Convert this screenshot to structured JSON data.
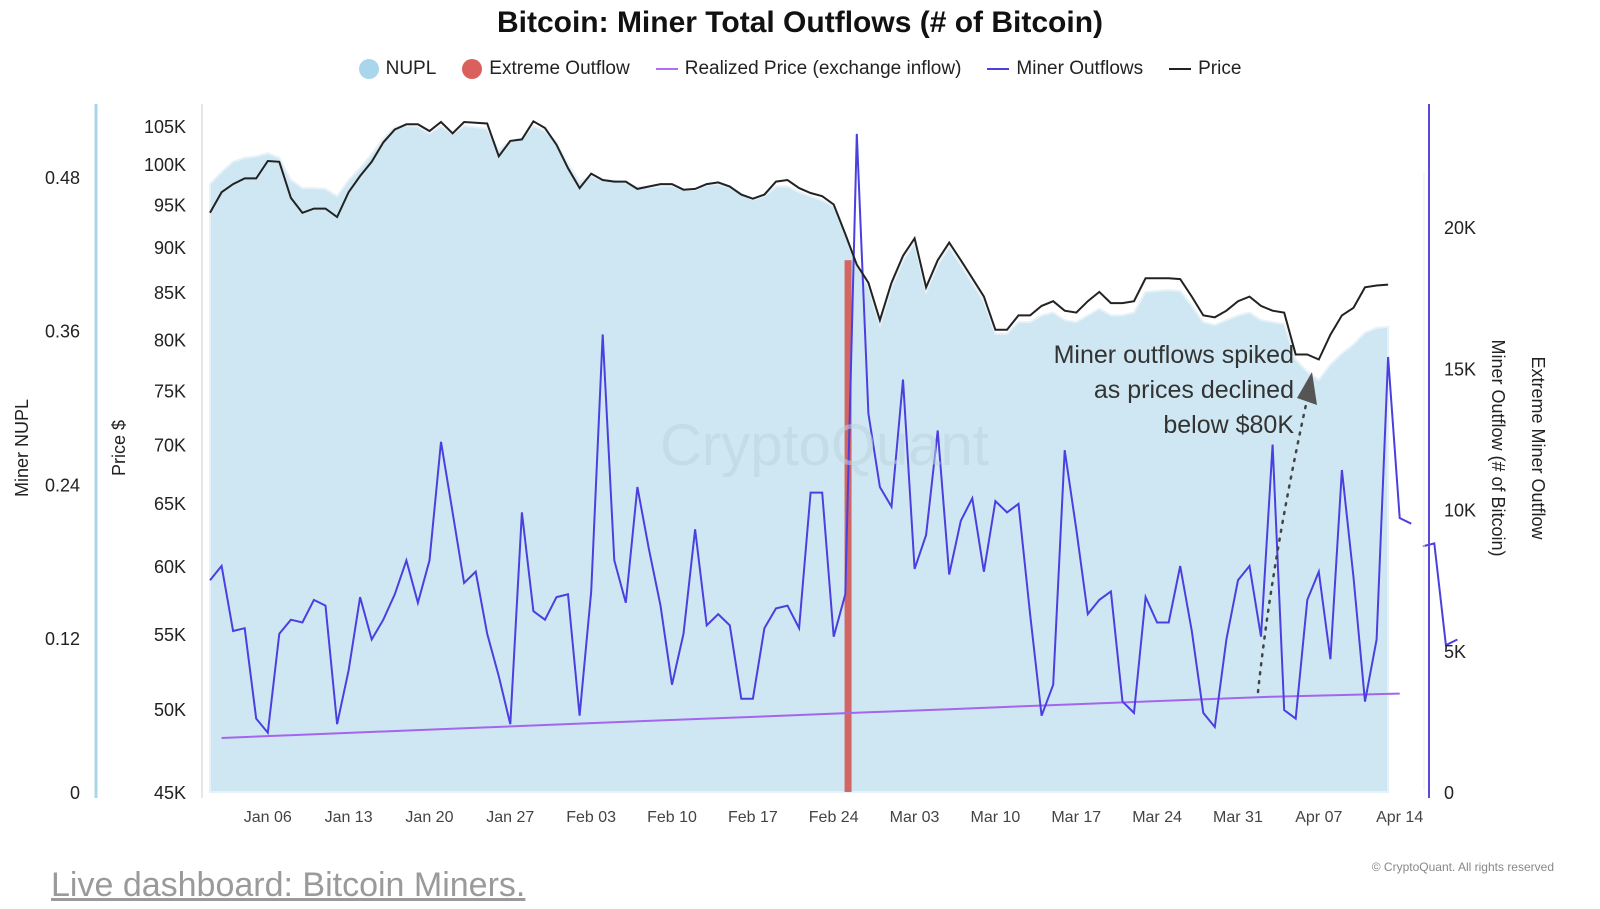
{
  "title": "Bitcoin: Miner Total Outflows (# of Bitcoin)",
  "legend": [
    {
      "label": "NUPL",
      "kind": "dot",
      "color": "#a9d6ea"
    },
    {
      "label": "Extreme Outflow",
      "kind": "dot",
      "color": "#d9605c"
    },
    {
      "label": "Realized Price (exchange inflow)",
      "kind": "line",
      "color": "#b06ef0"
    },
    {
      "label": "Miner Outflows",
      "kind": "line",
      "color": "#4b3fe0"
    },
    {
      "label": "Price",
      "kind": "line",
      "color": "#222222"
    }
  ],
  "annotation": {
    "lines": [
      "Miner outflows spiked",
      "as prices declined",
      "below $80K"
    ]
  },
  "watermark": "CryptoQuant",
  "copyright": "© CryptoQuant. All rights reserved",
  "footer_link": "Live dashboard: Bitcoin Miners.",
  "colors": {
    "nupl_fill": "#cfe7f2",
    "nupl_edge": "#e6f2f8",
    "extreme": "#d25b58",
    "realized": "#a466ee",
    "outflow": "#4b3fe0",
    "price": "#222222",
    "left_axis": "#a9d6ea",
    "right_axis": "#5a4ad8"
  },
  "chart_data": {
    "type": "line",
    "x_tick_labels": [
      "Jan 06",
      "Jan 13",
      "Jan 20",
      "Jan 27",
      "Feb 03",
      "Feb 10",
      "Feb 17",
      "Feb 24",
      "Mar 03",
      "Mar 10",
      "Mar 17",
      "Mar 24",
      "Mar 31",
      "Apr 07",
      "Apr 14"
    ],
    "x_start": "2025-01-01",
    "axes": {
      "nupl": {
        "label": "Miner NUPL",
        "ticks": [
          "0",
          "0.12",
          "0.24",
          "0.36",
          "0.48"
        ],
        "range": [
          0,
          0.54
        ]
      },
      "price": {
        "label": "Price $",
        "scale": "log",
        "ticks": [
          "45K",
          "50K",
          "55K",
          "60K",
          "65K",
          "70K",
          "75K",
          "80K",
          "85K",
          "90K",
          "95K",
          "100K",
          "105K"
        ],
        "tick_values": [
          45000,
          50000,
          55000,
          60000,
          65000,
          70000,
          75000,
          80000,
          85000,
          90000,
          95000,
          100000,
          105000
        ],
        "range": [
          45000,
          108500
        ]
      },
      "outflow": {
        "label": "Miner Outflow (# of Bitcoin)",
        "ticks": [
          "0",
          "5K",
          "10K",
          "15K",
          "20K"
        ],
        "tick_values": [
          0,
          5000,
          10000,
          15000,
          20000
        ],
        "range": [
          0,
          24500
        ]
      },
      "extreme": {
        "label": "Extreme Miner Outflow"
      }
    },
    "series": [
      {
        "name": "Price",
        "axis": "price",
        "values": [
          94000,
          96500,
          97500,
          98200,
          98200,
          100400,
          100300,
          95800,
          94000,
          94500,
          94500,
          93500,
          96500,
          98500,
          100300,
          102800,
          104500,
          105200,
          105200,
          104300,
          105500,
          104000,
          105500,
          105400,
          105300,
          101000,
          103000,
          103200,
          105600,
          104700,
          102500,
          99500,
          97000,
          98800,
          98000,
          97800,
          97800,
          96900,
          97200,
          97500,
          97500,
          96800,
          96900,
          97500,
          97700,
          97200,
          96200,
          95700,
          96200,
          97800,
          98000,
          97000,
          96400,
          96000,
          95000,
          91500,
          88000,
          86000,
          82000,
          86000,
          89000,
          91000,
          85500,
          88500,
          90500,
          88500,
          86500,
          84500,
          81000,
          81000,
          82500,
          82500,
          83500,
          84000,
          83000,
          82800,
          84000,
          85000,
          83800,
          83800,
          84000,
          86500,
          86500,
          86500,
          86400,
          84500,
          82500,
          82300,
          83000,
          84000,
          84500,
          83500,
          83000,
          82800,
          78500,
          78500,
          78000,
          80500,
          82500,
          83300,
          85500,
          85700,
          85800
        ]
      },
      {
        "name": "NUPL",
        "axis": "price",
        "values": [
          97500,
          99000,
          100300,
          100800,
          101000,
          101400,
          100800,
          98000,
          97000,
          97000,
          96900,
          96000,
          98000,
          99500,
          101300,
          103300,
          104800,
          105000,
          104900,
          104000,
          105000,
          104000,
          105000,
          104800,
          104600,
          101800,
          103000,
          103300,
          105000,
          104300,
          102800,
          100000,
          97800,
          98500,
          98000,
          97900,
          97700,
          97100,
          97100,
          97200,
          97300,
          96800,
          96800,
          97400,
          97500,
          97100,
          96300,
          95600,
          96000,
          97200,
          97200,
          96500,
          96000,
          95500,
          94800,
          91500,
          88000,
          85600,
          81500,
          85500,
          88500,
          90500,
          85000,
          88000,
          90000,
          88000,
          86000,
          84000,
          80600,
          80600,
          81800,
          81800,
          82500,
          82800,
          82000,
          81800,
          82500,
          83200,
          82500,
          82500,
          82800,
          85000,
          85100,
          85200,
          85100,
          83500,
          81800,
          81500,
          82000,
          82500,
          82800,
          82000,
          81800,
          81600,
          78000,
          76800,
          76000,
          77500,
          78600,
          79500,
          80700,
          81200,
          81300
        ]
      },
      {
        "name": "Miner Outflows",
        "axis": "outflow",
        "values": [
          7500,
          8000,
          5700,
          5800,
          2600,
          2100,
          5600,
          6100,
          6000,
          6800,
          6600,
          2400,
          4300,
          6900,
          5400,
          6100,
          7000,
          8200,
          6700,
          8200,
          12400,
          9900,
          7400,
          7800,
          5600,
          4100,
          2400,
          9900,
          6400,
          6100,
          6900,
          7000,
          2700,
          7100,
          16200,
          8200,
          6700,
          10800,
          8600,
          6600,
          3800,
          5600,
          9300,
          5900,
          6300,
          5900,
          3300,
          3300,
          5800,
          6500,
          6600,
          5800,
          10600,
          10600,
          5500,
          7000,
          23300,
          13400,
          10800,
          10100,
          14600,
          7900,
          9100,
          12800,
          7700,
          9600,
          10400,
          7800,
          10300,
          9900,
          10200,
          6300,
          2700,
          3800,
          12100,
          9300,
          6300,
          6800,
          7100,
          3200,
          2800,
          6900,
          6000,
          6000,
          8000,
          5700,
          2800,
          2300,
          5400,
          7500,
          8000,
          5500,
          12300,
          2900,
          2600,
          6800,
          7800,
          4700,
          11400,
          7600,
          3200,
          5400,
          15400,
          9700,
          9500
        ]
      },
      {
        "name": "Realized Price (exchange inflow)",
        "axis": "price",
        "values": [
          48200,
          48400,
          48600,
          48800,
          49000,
          49200,
          49400,
          49600,
          49800,
          50000,
          50200,
          50400,
          50600,
          50800,
          51000
        ]
      }
    ],
    "outflow_tail": [
      8700,
      8800,
      5200,
      5400
    ],
    "extreme_outflow_dates": [
      "Feb 24"
    ],
    "grid": false
  }
}
